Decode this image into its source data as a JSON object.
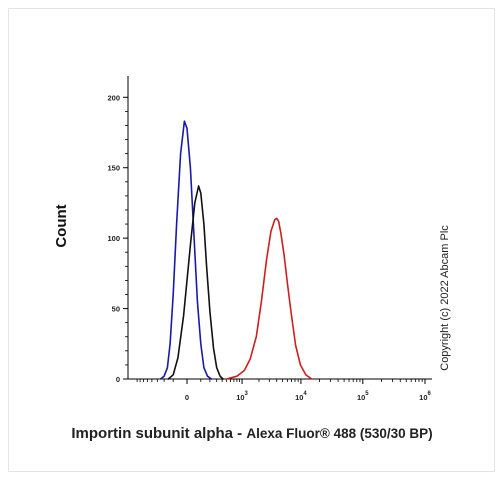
{
  "chart_data": {
    "type": "line",
    "ylabel": "Count",
    "xlabel_main": "Importin subunit alpha - ",
    "xlabel_sub": "Alexa Fluor® 488 (530/30 BP)",
    "copyright": "Copyright (c) 2022 Abcam Plc",
    "x_scale": "biexponential",
    "ylim": [
      0,
      210
    ],
    "y_ticks": [
      0,
      50,
      100,
      150,
      200
    ],
    "x_ticks": [
      {
        "value": "0",
        "base": "0",
        "exp": ""
      },
      {
        "value": "1000",
        "base": "10",
        "exp": "3"
      },
      {
        "value": "10000",
        "base": "10",
        "exp": "4"
      },
      {
        "value": "100000",
        "base": "10",
        "exp": "5"
      },
      {
        "value": "1000000",
        "base": "10",
        "exp": "6"
      }
    ],
    "series": [
      {
        "color": "#1a1aa8",
        "points": [
          [
            -250,
            0
          ],
          [
            -200,
            2
          ],
          [
            -160,
            8
          ],
          [
            -130,
            25
          ],
          [
            -100,
            60
          ],
          [
            -70,
            110
          ],
          [
            -40,
            160
          ],
          [
            -15,
            183
          ],
          [
            0,
            178
          ],
          [
            20,
            150
          ],
          [
            45,
            100
          ],
          [
            70,
            55
          ],
          [
            100,
            25
          ],
          [
            130,
            8
          ],
          [
            170,
            2
          ],
          [
            220,
            0
          ]
        ]
      },
      {
        "color": "#111111",
        "points": [
          [
            -150,
            0
          ],
          [
            -100,
            3
          ],
          [
            -60,
            15
          ],
          [
            -20,
            45
          ],
          [
            20,
            95
          ],
          [
            50,
            125
          ],
          [
            80,
            137
          ],
          [
            100,
            132
          ],
          [
            130,
            110
          ],
          [
            160,
            80
          ],
          [
            200,
            48
          ],
          [
            250,
            22
          ],
          [
            300,
            8
          ],
          [
            360,
            2
          ],
          [
            420,
            0
          ]
        ]
      },
      {
        "color": "#cc1f1f",
        "points": [
          [
            500,
            0
          ],
          [
            800,
            2
          ],
          [
            1100,
            6
          ],
          [
            1400,
            14
          ],
          [
            1800,
            30
          ],
          [
            2200,
            55
          ],
          [
            2700,
            85
          ],
          [
            3200,
            105
          ],
          [
            3700,
            113
          ],
          [
            4000,
            114
          ],
          [
            4300,
            112
          ],
          [
            4700,
            103
          ],
          [
            5300,
            88
          ],
          [
            6000,
            68
          ],
          [
            7000,
            45
          ],
          [
            8200,
            24
          ],
          [
            9800,
            10
          ],
          [
            12000,
            3
          ],
          [
            15000,
            0
          ]
        ]
      }
    ]
  }
}
